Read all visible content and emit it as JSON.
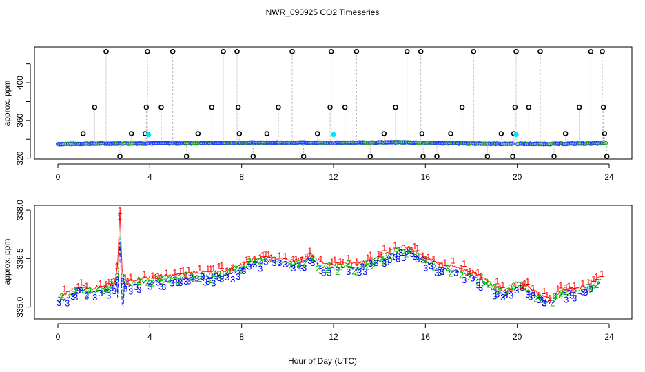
{
  "title": "NWR_090925  CO2 Timeseries",
  "chart_data": [
    {
      "type": "scatter",
      "panel": "top",
      "ylabel": "approx. ppm",
      "xlabel": "",
      "xlim": [
        0,
        24
      ],
      "ylim": [
        319,
        438
      ],
      "x_ticks": [
        0,
        4,
        8,
        12,
        16,
        20,
        24
      ],
      "x_tick_labels": [
        "0",
        "4",
        "8",
        "12",
        "16",
        "20",
        "24"
      ],
      "y_ticks": [
        320,
        360,
        400
      ],
      "y_tick_labels": [
        "320",
        "360",
        "400"
      ],
      "baseline_trend": {
        "x": [
          0,
          1,
          2,
          3,
          4,
          5,
          6,
          7,
          8,
          9,
          10,
          11,
          12,
          13,
          14,
          15,
          16,
          17,
          18,
          19,
          20,
          21,
          22,
          23,
          23.7
        ],
        "y": [
          335.0,
          335.3,
          335.5,
          335.6,
          335.7,
          335.8,
          335.9,
          336.0,
          336.3,
          336.6,
          336.4,
          336.6,
          336.3,
          336.5,
          336.8,
          336.9,
          336.3,
          335.8,
          335.6,
          335.3,
          335.3,
          335.1,
          335.3,
          335.6,
          335.8
        ]
      },
      "spikes": [
        {
          "x": 1.1,
          "y": 346
        },
        {
          "x": 1.6,
          "y": 374
        },
        {
          "x": 2.1,
          "y": 433
        },
        {
          "x": 2.7,
          "y": 322
        },
        {
          "x": 3.2,
          "y": 346
        },
        {
          "x": 3.8,
          "y": 346
        },
        {
          "x": 3.85,
          "y": 374
        },
        {
          "x": 3.9,
          "y": 433
        },
        {
          "x": 4.5,
          "y": 374
        },
        {
          "x": 5.0,
          "y": 433
        },
        {
          "x": 5.6,
          "y": 322
        },
        {
          "x": 6.1,
          "y": 346
        },
        {
          "x": 6.7,
          "y": 374
        },
        {
          "x": 7.2,
          "y": 433
        },
        {
          "x": 7.8,
          "y": 433
        },
        {
          "x": 7.85,
          "y": 374
        },
        {
          "x": 7.9,
          "y": 346
        },
        {
          "x": 8.5,
          "y": 322
        },
        {
          "x": 9.1,
          "y": 346
        },
        {
          "x": 9.6,
          "y": 374
        },
        {
          "x": 10.2,
          "y": 433
        },
        {
          "x": 10.7,
          "y": 322
        },
        {
          "x": 11.3,
          "y": 346
        },
        {
          "x": 11.85,
          "y": 374
        },
        {
          "x": 11.9,
          "y": 433
        },
        {
          "x": 12.5,
          "y": 374
        },
        {
          "x": 13.0,
          "y": 433
        },
        {
          "x": 13.6,
          "y": 322
        },
        {
          "x": 14.2,
          "y": 346
        },
        {
          "x": 14.7,
          "y": 374
        },
        {
          "x": 15.2,
          "y": 433
        },
        {
          "x": 15.8,
          "y": 433
        },
        {
          "x": 15.85,
          "y": 346
        },
        {
          "x": 15.9,
          "y": 322
        },
        {
          "x": 16.5,
          "y": 322
        },
        {
          "x": 17.1,
          "y": 346
        },
        {
          "x": 17.6,
          "y": 374
        },
        {
          "x": 18.1,
          "y": 433
        },
        {
          "x": 18.7,
          "y": 322
        },
        {
          "x": 19.3,
          "y": 346
        },
        {
          "x": 19.8,
          "y": 322
        },
        {
          "x": 19.85,
          "y": 346
        },
        {
          "x": 19.9,
          "y": 374
        },
        {
          "x": 19.95,
          "y": 433
        },
        {
          "x": 20.5,
          "y": 374
        },
        {
          "x": 21.0,
          "y": 433
        },
        {
          "x": 21.6,
          "y": 322
        },
        {
          "x": 22.1,
          "y": 346
        },
        {
          "x": 22.7,
          "y": 374
        },
        {
          "x": 23.2,
          "y": 433
        },
        {
          "x": 23.7,
          "y": 433
        },
        {
          "x": 23.75,
          "y": 374
        },
        {
          "x": 23.8,
          "y": 346
        },
        {
          "x": 23.9,
          "y": 322
        }
      ],
      "cyan_markers": [
        {
          "x": 3.95,
          "y": 345
        },
        {
          "x": 12.0,
          "y": 345
        },
        {
          "x": 19.95,
          "y": 345
        }
      ],
      "colors": {
        "spike": "#000000",
        "dense": "#1e3cff",
        "dense_alt": "#22aa22",
        "cyan": "#00e5ff",
        "connector": "#b0b0b0"
      }
    },
    {
      "type": "scatter",
      "panel": "bottom",
      "ylabel": "approx. ppm",
      "xlabel": "Hour of Day (UTC)",
      "xlim": [
        0,
        24
      ],
      "ylim": [
        334.63,
        338.15
      ],
      "x_ticks": [
        0,
        4,
        8,
        12,
        16,
        20,
        24
      ],
      "x_tick_labels": [
        "0",
        "4",
        "8",
        "12",
        "16",
        "20",
        "24"
      ],
      "y_ticks": [
        335.0,
        336.5,
        338.0
      ],
      "y_tick_labels": [
        "335.0",
        "336.5",
        "338.0"
      ],
      "series": [
        {
          "name": "1",
          "color": "#ff0000"
        },
        {
          "name": "2",
          "color": "#00bb00"
        },
        {
          "name": "3",
          "color": "#0000ff"
        }
      ],
      "trend": {
        "x": [
          0,
          0.5,
          1,
          1.5,
          2,
          2.5,
          2.6,
          2.7,
          2.8,
          3,
          3.5,
          4,
          5,
          6,
          7,
          7.5,
          8,
          8.5,
          9,
          9.5,
          10,
          10.5,
          11,
          11.5,
          12,
          12.5,
          13,
          13.5,
          14,
          14.5,
          15,
          15.5,
          16,
          16.5,
          17,
          17.5,
          18,
          18.5,
          19,
          19.5,
          20,
          20.5,
          21,
          21.5,
          22,
          22.5,
          23,
          23.5,
          23.7
        ],
        "y": [
          335.2,
          335.4,
          335.6,
          335.5,
          335.6,
          335.7,
          336.2,
          337.9,
          336.0,
          335.7,
          335.8,
          335.85,
          335.9,
          336.0,
          336.0,
          336.1,
          336.25,
          336.4,
          336.5,
          336.45,
          336.35,
          336.4,
          336.55,
          336.3,
          336.25,
          336.3,
          336.25,
          336.35,
          336.5,
          336.7,
          336.8,
          336.7,
          336.45,
          336.3,
          336.2,
          336.15,
          336.0,
          335.85,
          335.6,
          335.4,
          335.7,
          335.55,
          335.3,
          335.2,
          335.5,
          335.5,
          335.55,
          335.8,
          335.9
        ]
      }
    }
  ]
}
